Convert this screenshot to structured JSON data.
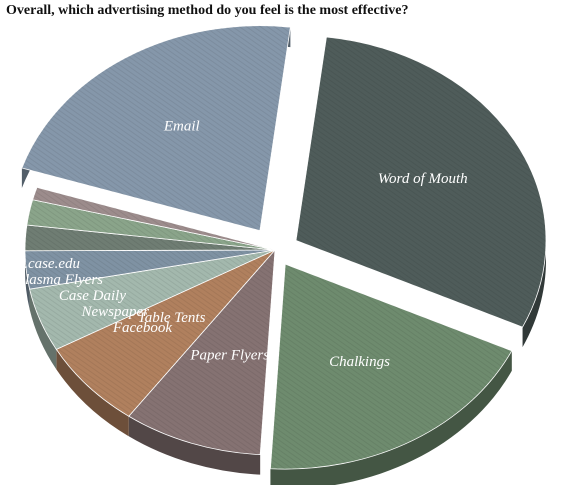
{
  "chart_data": {
    "type": "pie",
    "title": "Overall, which advertising method do you feel is the most effective?",
    "slices": [
      {
        "label": "Word of Mouth",
        "value": 30,
        "color": "#4f5c5a"
      },
      {
        "label": "Chalkings",
        "value": 19,
        "color": "#6e8b6e"
      },
      {
        "label": "Paper Flyers",
        "value": 9,
        "color": "#857272"
      },
      {
        "label": "Table Tents",
        "value": 7,
        "color": "#b0805e"
      },
      {
        "label": "Facebook",
        "value": 5,
        "color": "#a3b8ad"
      },
      {
        "label": "Newspaper",
        "value": 3,
        "color": "#7f92a3"
      },
      {
        "label": "Case Daily",
        "value": 2,
        "color": "#6f7d73"
      },
      {
        "label": "Plasma Flyers",
        "value": 2,
        "color": "#8aa48a"
      },
      {
        "label": "Start.case.edu",
        "value": 1,
        "color": "#9c8c8c"
      },
      {
        "label": "Email",
        "value": 22,
        "color": "#8597aa"
      }
    ]
  }
}
